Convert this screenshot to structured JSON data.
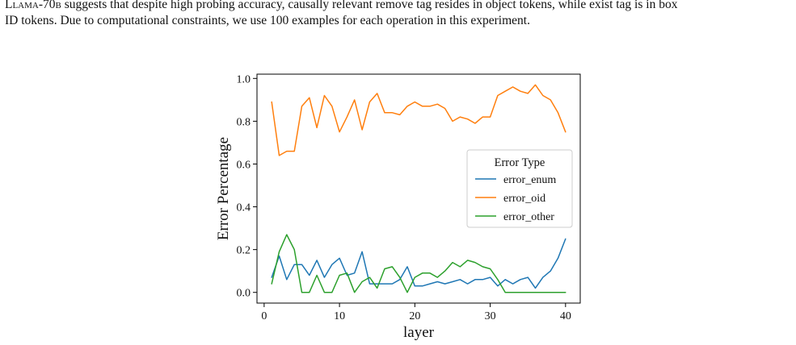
{
  "caption": {
    "line1_model_prefix": "Llama-70b",
    "line1_text": " suggests that despite high probing accuracy, causally relevant remove tag resides in object tokens, while exist tag is in box",
    "line2_text": "ID tokens. Due to computational constraints, we use 100 examples for each operation in this experiment."
  },
  "chart_data": {
    "type": "line",
    "title": "",
    "xlabel": "layer",
    "ylabel": "Error Percentage",
    "xlim": [
      -0.95,
      41.95
    ],
    "ylim": [
      -0.05,
      1.02
    ],
    "xticks": [
      0,
      10,
      20,
      30,
      40
    ],
    "yticks": [
      0.0,
      0.2,
      0.4,
      0.6,
      0.8,
      1.0
    ],
    "xtick_labels": [
      "0",
      "10",
      "20",
      "30",
      "40"
    ],
    "ytick_labels": [
      "0.0",
      "0.2",
      "0.4",
      "0.6",
      "0.8",
      "1.0"
    ],
    "grid": false,
    "legend": {
      "title": "Error Type",
      "placement": "center-right"
    },
    "x": [
      1,
      2,
      3,
      4,
      5,
      6,
      7,
      8,
      9,
      10,
      11,
      12,
      13,
      14,
      15,
      16,
      17,
      18,
      19,
      20,
      21,
      22,
      23,
      24,
      25,
      26,
      27,
      28,
      29,
      30,
      31,
      32,
      33,
      34,
      35,
      36,
      37,
      38,
      39,
      40
    ],
    "series": [
      {
        "name": "error_enum",
        "color": "#1f77b4",
        "values": [
          0.07,
          0.17,
          0.06,
          0.13,
          0.13,
          0.08,
          0.15,
          0.07,
          0.13,
          0.16,
          0.08,
          0.09,
          0.19,
          0.04,
          0.04,
          0.04,
          0.04,
          0.06,
          0.12,
          0.03,
          0.03,
          0.04,
          0.05,
          0.04,
          0.05,
          0.06,
          0.04,
          0.06,
          0.06,
          0.07,
          0.03,
          0.06,
          0.04,
          0.06,
          0.07,
          0.02,
          0.07,
          0.1,
          0.16,
          0.25
        ]
      },
      {
        "name": "error_oid",
        "color": "#ff7f0e",
        "values": [
          0.89,
          0.64,
          0.66,
          0.66,
          0.87,
          0.91,
          0.77,
          0.92,
          0.87,
          0.75,
          0.82,
          0.9,
          0.76,
          0.89,
          0.93,
          0.84,
          0.84,
          0.83,
          0.87,
          0.89,
          0.87,
          0.87,
          0.88,
          0.86,
          0.8,
          0.82,
          0.81,
          0.79,
          0.82,
          0.82,
          0.92,
          0.94,
          0.96,
          0.94,
          0.93,
          0.97,
          0.92,
          0.9,
          0.84,
          0.75
        ]
      },
      {
        "name": "error_other",
        "color": "#2ca02c",
        "values": [
          0.04,
          0.19,
          0.27,
          0.2,
          0.0,
          0.0,
          0.08,
          0.0,
          0.0,
          0.08,
          0.09,
          0.0,
          0.05,
          0.07,
          0.02,
          0.11,
          0.12,
          0.07,
          0.0,
          0.07,
          0.09,
          0.09,
          0.07,
          0.1,
          0.14,
          0.12,
          0.15,
          0.14,
          0.12,
          0.11,
          0.06,
          0.0,
          0.0,
          0.0,
          0.0,
          0.0,
          0.0,
          0.0,
          0.0,
          0.0
        ]
      }
    ]
  }
}
